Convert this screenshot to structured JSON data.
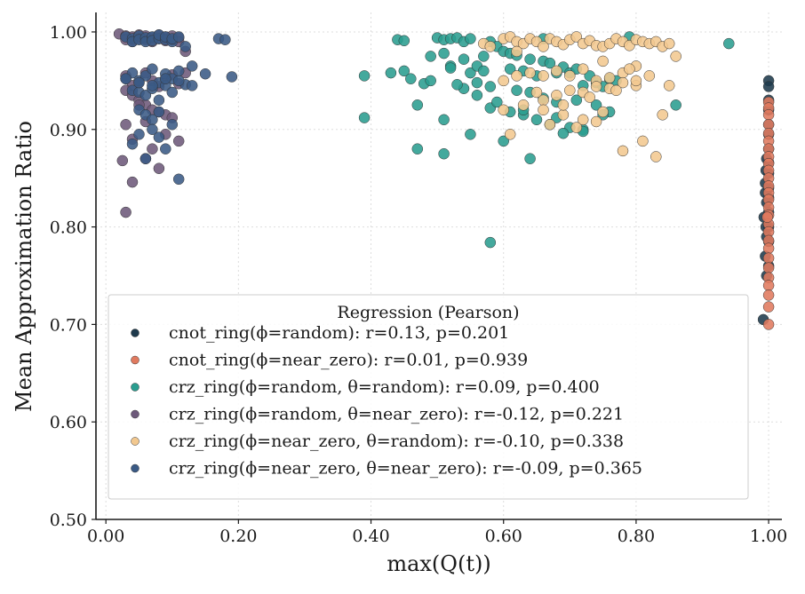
{
  "chart_data": {
    "type": "scatter",
    "xlabel": "max(Q(t))",
    "ylabel": "Mean Approximation Ratio",
    "xlim": [
      -0.015,
      1.02
    ],
    "ylim": [
      0.5,
      1.02
    ],
    "xticks": [
      0.0,
      0.2,
      0.4,
      0.6,
      0.8,
      1.0
    ],
    "xtick_labels": [
      "0.00",
      "0.20",
      "0.40",
      "0.60",
      "0.80",
      "1.00"
    ],
    "yticks": [
      0.5,
      0.6,
      0.7,
      0.8,
      0.9,
      1.0
    ],
    "ytick_labels": [
      "0.50",
      "0.60",
      "0.70",
      "0.80",
      "0.90",
      "1.00"
    ],
    "grid": true,
    "legend_placement": "lower-center",
    "legend_title": "Regression (Pearson)",
    "series": [
      {
        "name": "cnot_ring(ϕ=random): r=0.13, p=0.201",
        "color": "#1e3a4c",
        "x": [
          1.0,
          1.0,
          1.0,
          1.0,
          1.0,
          1.0,
          1.0,
          1.0,
          1.0,
          1.0,
          1.0,
          1.0,
          1.0,
          1.0,
          1.0,
          0.997,
          0.995,
          0.995,
          0.997,
          0.993,
          0.996,
          0.997,
          0.995,
          0.997,
          0.992,
          0.996
        ],
        "y": [
          0.95,
          0.944,
          0.93,
          0.92,
          0.905,
          0.895,
          0.88,
          0.866,
          0.855,
          0.84,
          0.83,
          0.815,
          0.8,
          0.785,
          0.76,
          0.87,
          0.845,
          0.835,
          0.825,
          0.81,
          0.8,
          0.79,
          0.77,
          0.75,
          0.705,
          0.858
        ]
      },
      {
        "name": "cnot_ring(ϕ=near_zero): r=0.01, p=0.939",
        "color": "#e07a5f",
        "x": [
          1.0,
          1.0,
          1.0,
          1.0,
          1.0,
          1.0,
          1.0,
          1.0,
          1.0,
          1.0,
          1.0,
          1.0,
          1.0,
          1.0,
          1.0,
          1.0,
          1.0,
          1.0,
          1.0,
          1.0,
          1.0,
          1.0,
          1.0,
          1.0,
          1.0,
          1.0,
          1.0,
          0.998
        ],
        "y": [
          0.928,
          0.922,
          0.915,
          0.905,
          0.896,
          0.888,
          0.88,
          0.872,
          0.865,
          0.858,
          0.85,
          0.842,
          0.835,
          0.828,
          0.82,
          0.812,
          0.803,
          0.795,
          0.786,
          0.778,
          0.768,
          0.758,
          0.748,
          0.74,
          0.73,
          0.718,
          0.7,
          0.81
        ]
      },
      {
        "name": "crz_ring(ϕ=random, θ=random): r=0.09, p=0.400",
        "color": "#2a9d8f",
        "x": [
          0.39,
          0.39,
          0.43,
          0.44,
          0.45,
          0.46,
          0.47,
          0.48,
          0.49,
          0.5,
          0.51,
          0.52,
          0.53,
          0.54,
          0.55,
          0.51,
          0.52,
          0.54,
          0.55,
          0.56,
          0.57,
          0.58,
          0.59,
          0.6,
          0.61,
          0.62,
          0.63,
          0.64,
          0.65,
          0.66,
          0.67,
          0.68,
          0.69,
          0.7,
          0.71,
          0.72,
          0.73,
          0.74,
          0.75,
          0.76,
          0.77,
          0.49,
          0.52,
          0.56,
          0.58,
          0.62,
          0.64,
          0.66,
          0.68,
          0.71,
          0.74,
          0.76,
          0.56,
          0.58,
          0.61,
          0.63,
          0.65,
          0.67,
          0.7,
          0.72,
          0.75,
          0.54,
          0.59,
          0.63,
          0.68,
          0.72,
          0.51,
          0.55,
          0.6,
          0.64,
          0.69,
          0.86,
          0.94,
          0.58,
          0.47,
          0.51,
          0.61,
          0.66,
          0.79,
          0.45,
          0.53,
          0.57
        ],
        "y": [
          0.955,
          0.912,
          0.958,
          0.992,
          0.96,
          0.952,
          0.88,
          0.947,
          0.95,
          0.994,
          0.992,
          0.993,
          0.994,
          0.99,
          0.993,
          0.978,
          0.965,
          0.972,
          0.958,
          0.965,
          0.975,
          0.99,
          0.985,
          0.98,
          0.978,
          0.976,
          0.96,
          0.972,
          0.955,
          0.97,
          0.968,
          0.958,
          0.964,
          0.958,
          0.962,
          0.945,
          0.955,
          0.948,
          0.944,
          0.952,
          0.95,
          0.975,
          0.963,
          0.948,
          0.944,
          0.94,
          0.938,
          0.932,
          0.928,
          0.93,
          0.925,
          0.918,
          0.935,
          0.922,
          0.918,
          0.915,
          0.91,
          0.905,
          0.902,
          0.9,
          0.915,
          0.942,
          0.928,
          0.92,
          0.912,
          0.898,
          0.91,
          0.895,
          0.888,
          0.87,
          0.896,
          0.925,
          0.988,
          0.784,
          0.925,
          0.875,
          0.962,
          0.993,
          0.995,
          0.991,
          0.946,
          0.96
        ]
      },
      {
        "name": "crz_ring(ϕ=random, θ=near_zero): r=-0.12, p=0.221",
        "color": "#6d597a",
        "x": [
          0.02,
          0.03,
          0.03,
          0.04,
          0.04,
          0.05,
          0.05,
          0.06,
          0.06,
          0.07,
          0.07,
          0.08,
          0.08,
          0.09,
          0.09,
          0.1,
          0.1,
          0.11,
          0.11,
          0.12,
          0.03,
          0.04,
          0.05,
          0.06,
          0.07,
          0.08,
          0.09,
          0.1,
          0.11,
          0.12,
          0.03,
          0.04,
          0.05,
          0.06,
          0.07,
          0.08,
          0.09,
          0.03,
          0.06,
          0.09,
          0.04,
          0.07,
          0.11,
          0.025,
          0.04,
          0.06,
          0.08,
          0.03,
          0.1,
          0.05
        ],
        "y": [
          0.998,
          0.996,
          0.992,
          0.995,
          0.99,
          0.997,
          0.993,
          0.992,
          0.996,
          0.994,
          0.99,
          0.993,
          0.997,
          0.991,
          0.995,
          0.992,
          0.996,
          0.994,
          0.99,
          0.98,
          0.955,
          0.945,
          0.948,
          0.958,
          0.95,
          0.944,
          0.952,
          0.956,
          0.947,
          0.958,
          0.94,
          0.935,
          0.93,
          0.925,
          0.92,
          0.918,
          0.915,
          0.905,
          0.908,
          0.895,
          0.89,
          0.88,
          0.888,
          0.868,
          0.846,
          0.87,
          0.86,
          0.815,
          0.912,
          0.925
        ]
      },
      {
        "name": "crz_ring(ϕ=near_zero, θ=random): r=-0.10, p=0.338",
        "color": "#f2c88f",
        "x": [
          0.57,
          0.58,
          0.6,
          0.61,
          0.62,
          0.63,
          0.64,
          0.65,
          0.66,
          0.67,
          0.68,
          0.69,
          0.7,
          0.71,
          0.72,
          0.73,
          0.74,
          0.75,
          0.76,
          0.77,
          0.78,
          0.79,
          0.8,
          0.81,
          0.82,
          0.83,
          0.84,
          0.85,
          0.86,
          0.6,
          0.62,
          0.64,
          0.66,
          0.68,
          0.7,
          0.72,
          0.74,
          0.76,
          0.78,
          0.8,
          0.82,
          0.85,
          0.66,
          0.68,
          0.7,
          0.72,
          0.74,
          0.76,
          0.78,
          0.8,
          0.6,
          0.63,
          0.66,
          0.69,
          0.72,
          0.75,
          0.84,
          0.61,
          0.67,
          0.71,
          0.74,
          0.78,
          0.81,
          0.83,
          0.65,
          0.69,
          0.73,
          0.77,
          0.8,
          0.62,
          0.75,
          0.79
        ],
        "y": [
          0.988,
          0.985,
          0.993,
          0.995,
          0.99,
          0.988,
          0.993,
          0.99,
          0.985,
          0.993,
          0.99,
          0.987,
          0.992,
          0.995,
          0.988,
          0.991,
          0.986,
          0.985,
          0.988,
          0.993,
          0.99,
          0.986,
          0.992,
          0.99,
          0.988,
          0.99,
          0.985,
          0.988,
          0.975,
          0.95,
          0.955,
          0.958,
          0.955,
          0.96,
          0.955,
          0.962,
          0.95,
          0.953,
          0.958,
          0.945,
          0.955,
          0.945,
          0.93,
          0.935,
          0.94,
          0.938,
          0.944,
          0.942,
          0.948,
          0.95,
          0.92,
          0.925,
          0.92,
          0.915,
          0.91,
          0.918,
          0.915,
          0.895,
          0.905,
          0.902,
          0.908,
          0.878,
          0.888,
          0.872,
          0.938,
          0.925,
          0.933,
          0.94,
          0.965,
          0.98,
          0.97,
          0.962
        ]
      },
      {
        "name": "crz_ring(ϕ=near_zero, θ=near_zero): r=-0.09, p=0.365",
        "color": "#3a5a85",
        "x": [
          0.03,
          0.04,
          0.04,
          0.05,
          0.05,
          0.06,
          0.06,
          0.07,
          0.07,
          0.08,
          0.08,
          0.09,
          0.09,
          0.1,
          0.1,
          0.11,
          0.12,
          0.17,
          0.18,
          0.03,
          0.04,
          0.05,
          0.06,
          0.07,
          0.08,
          0.09,
          0.1,
          0.11,
          0.12,
          0.13,
          0.15,
          0.19,
          0.04,
          0.05,
          0.06,
          0.07,
          0.08,
          0.09,
          0.1,
          0.11,
          0.13,
          0.05,
          0.06,
          0.07,
          0.08,
          0.1,
          0.05,
          0.07,
          0.09,
          0.04,
          0.06,
          0.08,
          0.11,
          0.03,
          0.05,
          0.07,
          0.09
        ],
        "y": [
          0.995,
          0.993,
          0.99,
          0.996,
          0.992,
          0.994,
          0.99,
          0.995,
          0.991,
          0.993,
          0.997,
          0.992,
          0.995,
          0.99,
          0.993,
          0.995,
          0.985,
          0.993,
          0.992,
          0.952,
          0.958,
          0.95,
          0.955,
          0.962,
          0.948,
          0.957,
          0.952,
          0.96,
          0.946,
          0.945,
          0.957,
          0.954,
          0.94,
          0.938,
          0.935,
          0.942,
          0.93,
          0.945,
          0.938,
          0.95,
          0.965,
          0.92,
          0.915,
          0.91,
          0.918,
          0.905,
          0.895,
          0.9,
          0.88,
          0.885,
          0.87,
          0.892,
          0.849,
          0.952,
          0.948,
          0.945,
          0.952
        ]
      }
    ]
  }
}
